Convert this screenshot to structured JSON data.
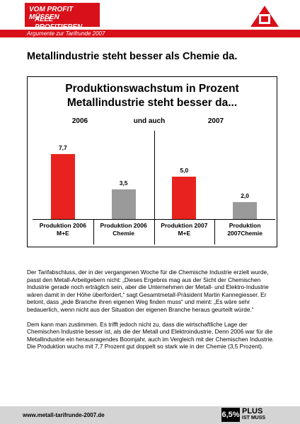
{
  "header": {
    "slogan_line1": "VOM PROFIT MÜSSEN",
    "slogan_line2": "ALLE PROFITIEREN.",
    "subtitle": "Argumente zur Tarifrunde 2007"
  },
  "title": "Metallindustrie steht besser als Chemie da.",
  "chart": {
    "type": "bar",
    "title_line1": "Produktionswachstum in Prozent",
    "title_line2": "Metallindustrie steht besser da...",
    "period_labels": [
      "2006",
      "und auch",
      "2007"
    ],
    "categories": [
      "Produktion 2006 M+E",
      "Produktion 2006 Chemie",
      "Produktion 2007 M+E",
      "Produktion 2007Chemie"
    ],
    "values": [
      7.7,
      3.5,
      5.0,
      2.0
    ],
    "value_labels": [
      "7,7",
      "3,5",
      "5,0",
      "2,0"
    ],
    "colors": [
      "#e8231f",
      "#9a9a9a",
      "#e8231f",
      "#9a9a9a"
    ],
    "ylim": [
      0,
      10
    ]
  },
  "body": {
    "paragraphs": [
      "Der Tarifabschluss, der in der vergangenen Woche für die Chemische Industrie erzielt wurde, passt den Metall-Arbeitgebern nicht: „Dieses Ergebnis mag aus der Sicht der Chemischen Industrie gerade noch erträglich sein, aber die Unternehmen der Metall- und Elektro-Industrie wären damit in der Höhe überfordert,“ sagt Gesamtmetall-Präsident Martin Kannegiesser. Er betont, dass „jede Branche ihren eigenen Weg finden muss“ und meint: „Es wäre sehr bedauerlich, wenn nicht aus der Situation der eigenen Branche heraus geurteilt würde.“",
      "Dem kann man zustimmen. Es trifft jedoch nicht zu, dass die wirtschaftliche Lage der Chemischen Industrie besser ist, als die der Metall und Elektroindustrie. Denn 2006 war für die Metallindustrie ein herausragendes Boomjahr, auch im Vergleich mit der Chemischen Industrie. Die Produktion wuchs mit 7,7 Prozent gut doppelt so stark wie in der Chemie (3,5 Prozent)."
    ]
  },
  "footer": {
    "url": "www.metall-tarifrunde-2007.de",
    "badge_number": "6,5%",
    "badge_line1": "PLUS",
    "badge_line2": "IST MUSS"
  }
}
